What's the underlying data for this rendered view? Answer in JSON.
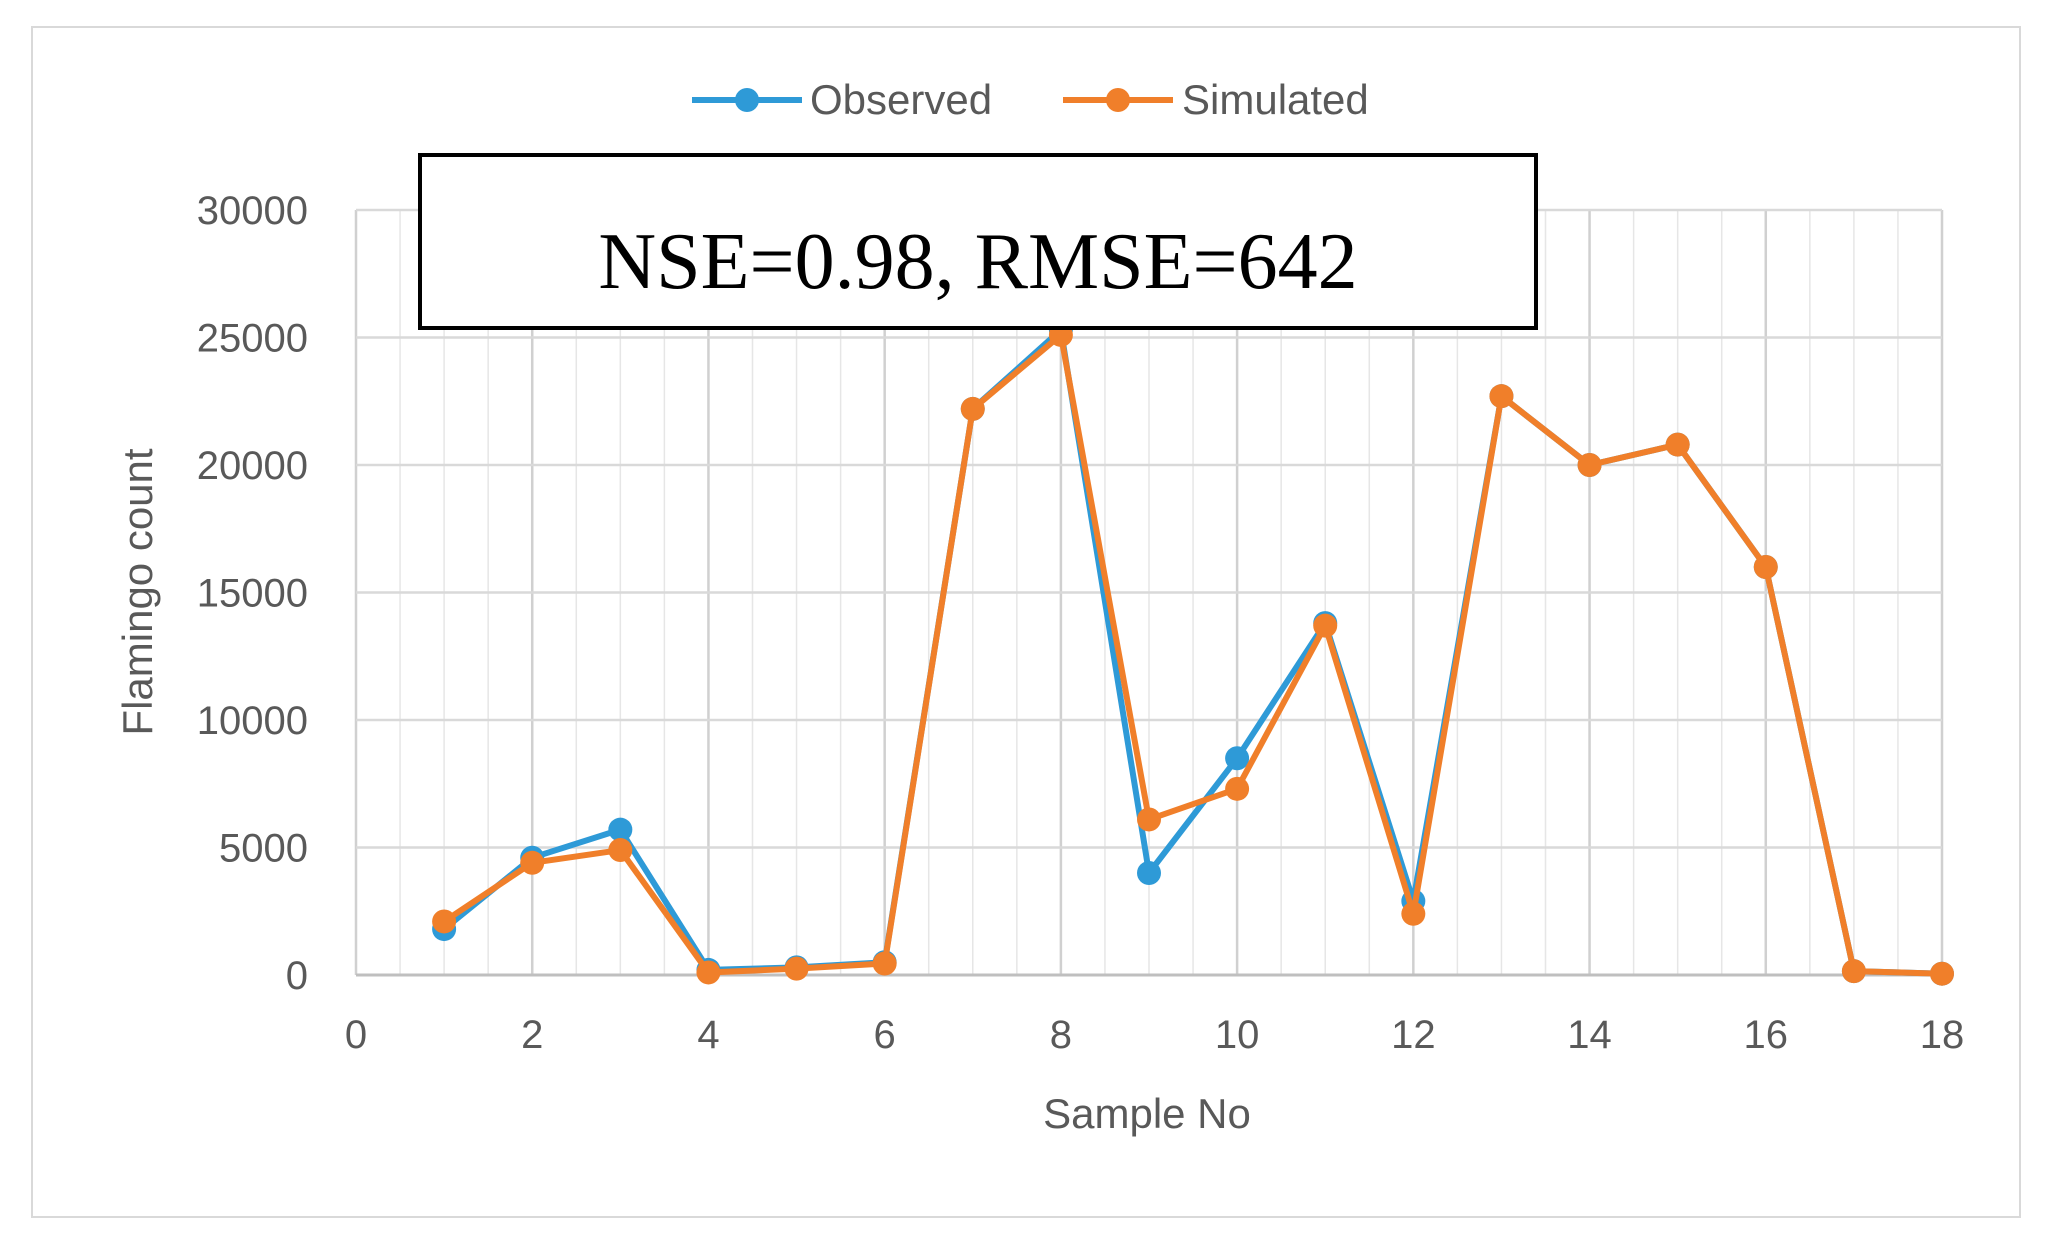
{
  "chart_data": {
    "type": "line",
    "title": "",
    "xlabel": "Sample No",
    "ylabel": "Flamingo count",
    "xlim": [
      0,
      18
    ],
    "ylim": [
      0,
      30000
    ],
    "x_ticks": [
      "0",
      "2",
      "4",
      "6",
      "8",
      "10",
      "12",
      "14",
      "16",
      "18"
    ],
    "y_ticks": [
      "0",
      "5000",
      "10000",
      "15000",
      "20000",
      "25000",
      "30000"
    ],
    "grid": true,
    "legend": "top",
    "annotation": "NSE=0.98, RMSE=642",
    "x": [
      1,
      2,
      3,
      4,
      5,
      6,
      7,
      8,
      9,
      10,
      11,
      12,
      13,
      14,
      15,
      16,
      17,
      18
    ],
    "series": [
      {
        "name": "Observed",
        "color": "#2e9ad7",
        "values": [
          1800,
          4600,
          5700,
          200,
          300,
          500,
          22200,
          25300,
          4000,
          8500,
          13800,
          2900,
          22700,
          20000,
          20800,
          16000,
          150,
          50
        ]
      },
      {
        "name": "Simulated",
        "color": "#f07f2a",
        "values": [
          2100,
          4400,
          4900,
          100,
          250,
          450,
          22200,
          25100,
          6100,
          7300,
          13700,
          2400,
          22700,
          20000,
          20800,
          16000,
          150,
          50
        ]
      }
    ]
  }
}
